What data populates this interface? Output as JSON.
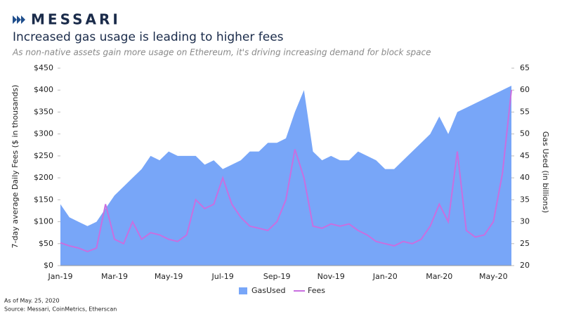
{
  "brand": "MESSARI",
  "chart_data": {
    "type": "area-line",
    "title": "Increased gas usage is leading to higher fees",
    "subtitle": "As non-native assets gain more usage on Ethereum, it's driving increasing demand for block space",
    "y_label": "7-day average Daily Fees ($ in thousands)",
    "y2_label": "Gas Used (in billions)",
    "categories": [
      "Jan-19",
      null,
      null,
      null,
      null,
      null,
      "Mar-19",
      null,
      null,
      null,
      null,
      null,
      "May-19",
      null,
      null,
      null,
      null,
      null,
      "Jul-19",
      null,
      null,
      null,
      null,
      null,
      "Sep-19",
      null,
      null,
      null,
      null,
      null,
      "Nov-19",
      null,
      null,
      null,
      null,
      null,
      "Jan-20",
      null,
      null,
      null,
      null,
      null,
      "Mar-20",
      null,
      null,
      null,
      null,
      null,
      "May-20",
      null,
      null
    ],
    "series": [
      {
        "name": "GasUsed",
        "color": "#78a6f8",
        "axis": "y2",
        "values": [
          34,
          31,
          30,
          29,
          30,
          33,
          36,
          38,
          40,
          42,
          45,
          44,
          46,
          45,
          45,
          45,
          43,
          44,
          42,
          43,
          44,
          46,
          46,
          48,
          48,
          49,
          55,
          60,
          46,
          44,
          45,
          44,
          44,
          46,
          45,
          44,
          42,
          42,
          44,
          46,
          48,
          50,
          54,
          50,
          55,
          56,
          57,
          58,
          59,
          60,
          61
        ]
      },
      {
        "name": "Fees",
        "color": "#c86fe0",
        "axis": "y",
        "values": [
          52,
          45,
          40,
          32,
          40,
          140,
          60,
          50,
          100,
          60,
          75,
          70,
          60,
          55,
          70,
          150,
          130,
          140,
          200,
          140,
          110,
          90,
          85,
          80,
          100,
          150,
          265,
          200,
          90,
          85,
          95,
          90,
          95,
          80,
          70,
          55,
          50,
          45,
          55,
          50,
          60,
          90,
          140,
          100,
          260,
          80,
          65,
          70,
          100,
          210,
          400
        ]
      }
    ],
    "ylim": [
      0,
      450
    ],
    "yticks": [
      {
        "value": 0,
        "label": "$0"
      },
      {
        "value": 50,
        "label": "$50"
      },
      {
        "value": 100,
        "label": "$100"
      },
      {
        "value": 150,
        "label": "$150"
      },
      {
        "value": 200,
        "label": "$200"
      },
      {
        "value": 250,
        "label": "$250"
      },
      {
        "value": 300,
        "label": "$300"
      },
      {
        "value": 350,
        "label": "$350"
      },
      {
        "value": 400,
        "label": "$400"
      },
      {
        "value": 450,
        "label": "$450"
      }
    ],
    "y2lim": [
      20,
      65
    ],
    "y2ticks": [
      20,
      25,
      30,
      35,
      40,
      45,
      50,
      55,
      60,
      65
    ],
    "legend": "bottom"
  },
  "footer": {
    "note": "As of May. 25, 2020",
    "source": "Source: Messari, CoinMetrics, Etherscan"
  }
}
